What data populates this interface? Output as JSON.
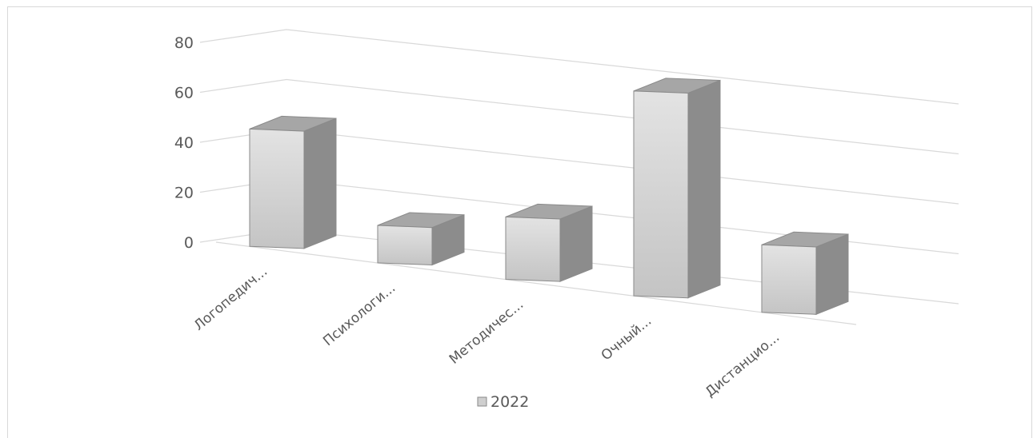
{
  "chart_data": {
    "type": "bar",
    "title": "",
    "xlabel": "",
    "ylabel": "",
    "categories": [
      "Логопедич...",
      "Психологи...",
      "Методичес...",
      "Очный...",
      "Дистанцио..."
    ],
    "series": [
      {
        "name": "2022",
        "values": [
          47,
          15,
          25,
          82,
          27
        ]
      }
    ],
    "ylim": [
      0,
      80
    ],
    "yticks": [
      "0",
      "20",
      "40",
      "60",
      "80"
    ],
    "grid": true,
    "legend_position": "bottom",
    "colors": {
      "front": "#cfcfcf",
      "side": "#8c8c8c",
      "top": "#a6a6a6",
      "edge": "#8a8a8a",
      "grid": "#d9d9d9"
    },
    "projection": "3d"
  }
}
